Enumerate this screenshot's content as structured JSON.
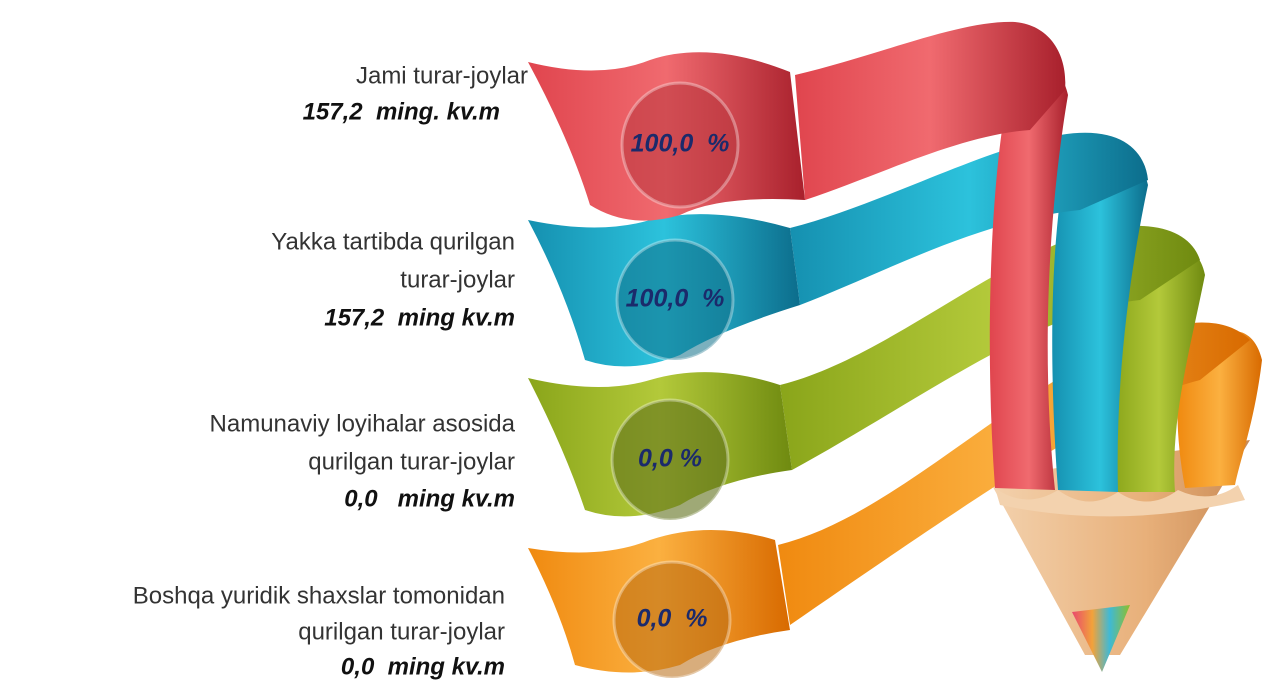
{
  "items": [
    {
      "label": [
        "Jami turar-joylar"
      ],
      "value": "157,2  ming. kv.m",
      "percent": "100,0  %"
    },
    {
      "label": [
        "Yakka tartibda qurilgan",
        "turar-joylar"
      ],
      "value": "157,2  ming kv.m",
      "percent": "100,0  %"
    },
    {
      "label": [
        "Namunaviy loyihalar asosida",
        "qurilgan turar-joylar"
      ],
      "value": "0,0   ming kv.m",
      "percent": "0,0 %"
    },
    {
      "label": [
        "Boshqa yuridik shaxslar tomonidan",
        "qurilgan turar-joylar"
      ],
      "value": "0,0  ming kv.m",
      "percent": "0,0  %"
    }
  ]
}
